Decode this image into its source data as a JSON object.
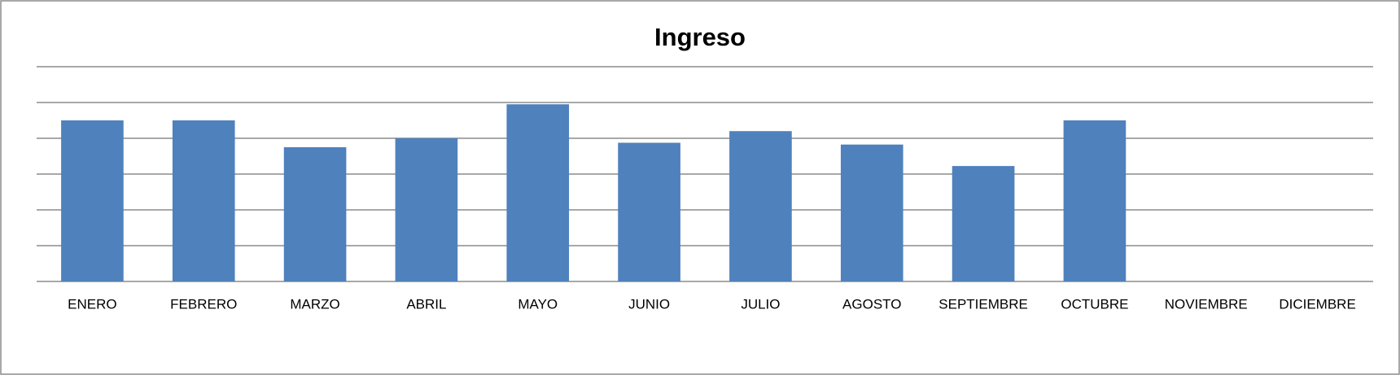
{
  "chart_data": {
    "type": "bar",
    "title": "Ingreso",
    "categories": [
      "ENERO",
      "FEBRERO",
      "MARZO",
      "ABRIL",
      "MAYO",
      "JUNIO",
      "JULIO",
      "AGOSTO",
      "SEPTIEMBRE",
      "OCTUBRE",
      "NOVIEMBRE",
      "DICIEMBRE"
    ],
    "values": [
      4.5,
      4.5,
      3.75,
      4.0,
      4.95,
      3.875,
      4.2,
      3.825,
      3.225,
      4.5,
      null,
      null
    ],
    "color": "#4f81bd",
    "ylim": [
      0,
      6
    ],
    "yticks": [
      0,
      1,
      2,
      3,
      4,
      5,
      6
    ],
    "grid": true
  }
}
